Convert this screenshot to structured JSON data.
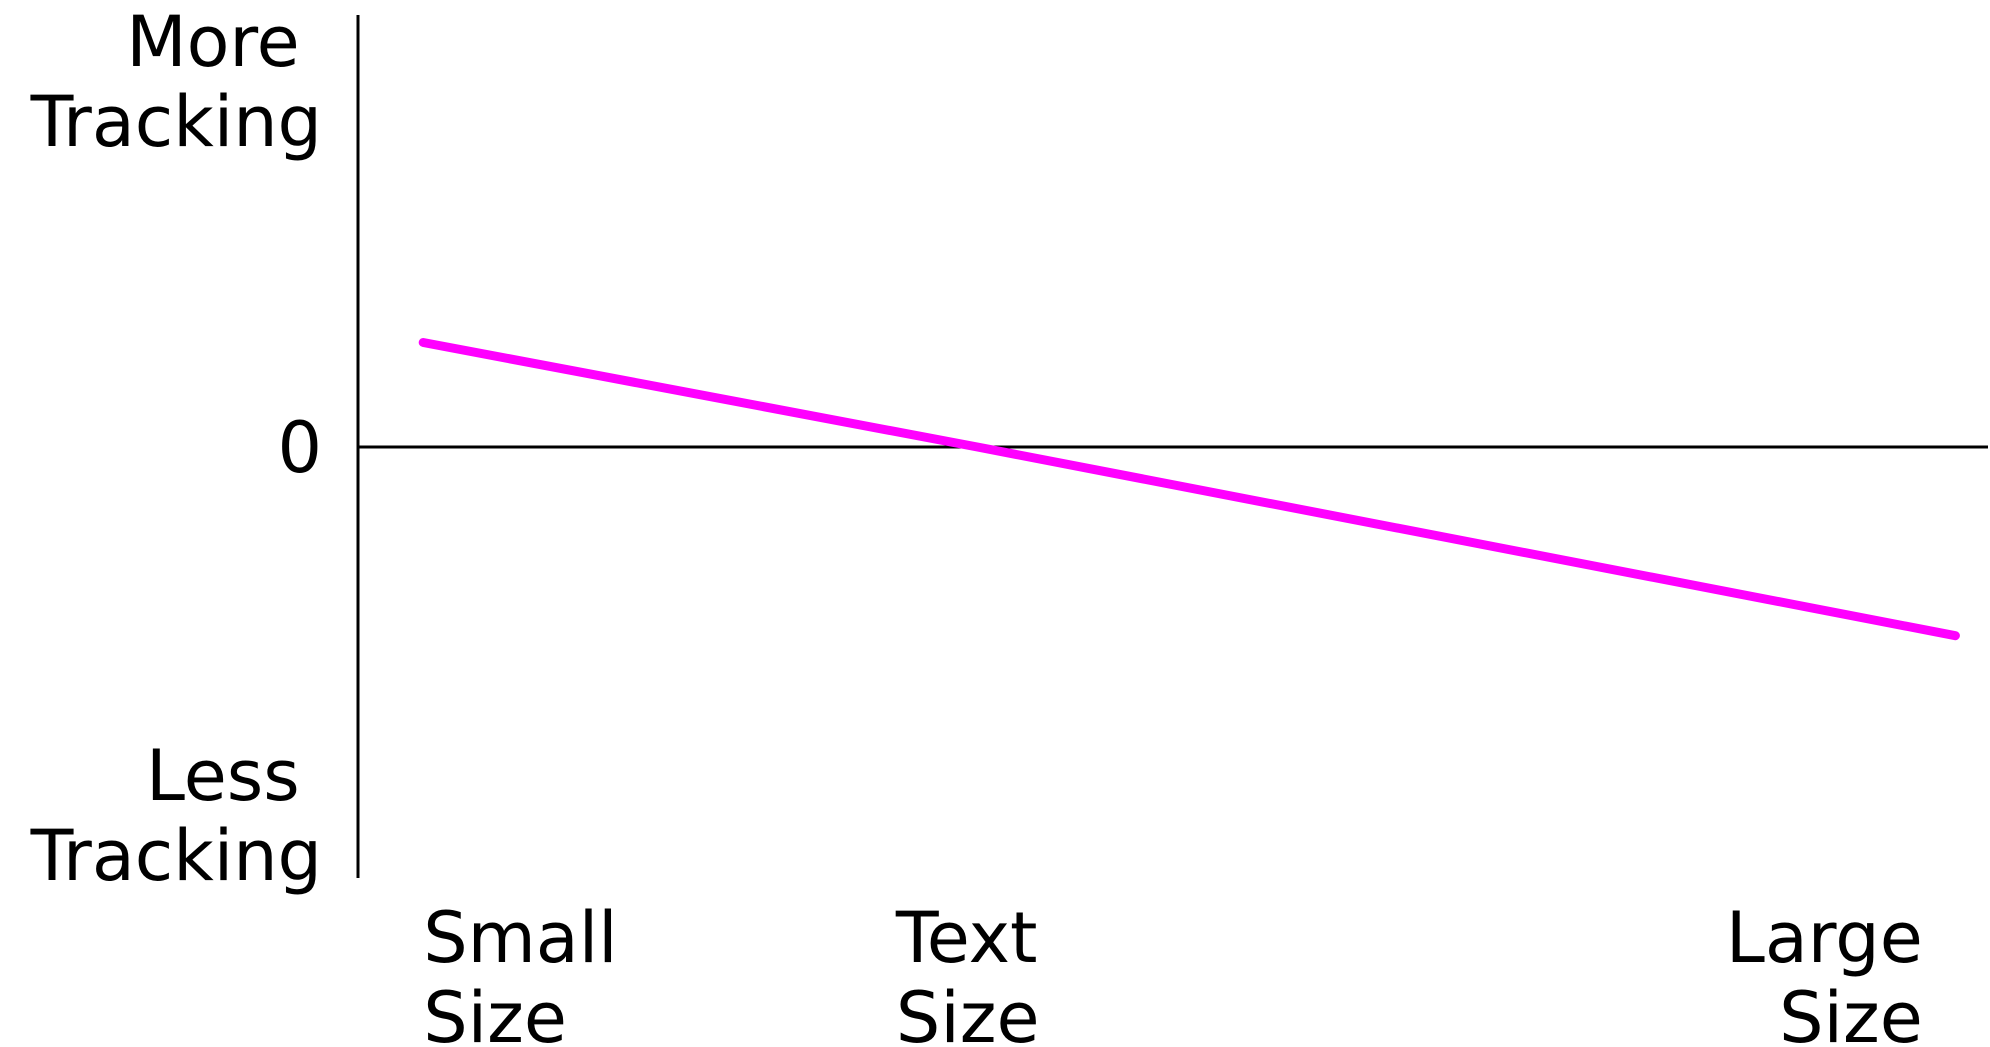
{
  "chart_data": {
    "type": "line",
    "title": "",
    "xlabel": "",
    "ylabel": "",
    "y_tick_labels": {
      "top": [
        "More",
        "Tracking"
      ],
      "zero": "0",
      "bottom": [
        "Less",
        "Tracking"
      ]
    },
    "x_tick_labels": [
      {
        "x": 0.04,
        "lines": [
          "Small",
          "Size"
        ]
      },
      {
        "x": 0.33,
        "lines": [
          "Text",
          "Size"
        ]
      },
      {
        "x": 0.96,
        "lines": [
          "Large",
          "Size"
        ]
      }
    ],
    "xlim": [
      0,
      1
    ],
    "ylim": [
      -1,
      1
    ],
    "series": [
      {
        "x": [
          0.04,
          0.38,
          0.98
        ],
        "y": [
          0.31,
          0.0,
          -0.56
        ]
      }
    ],
    "line_color": "#ff00ff",
    "axis_color": "#000000",
    "grid": false
  }
}
